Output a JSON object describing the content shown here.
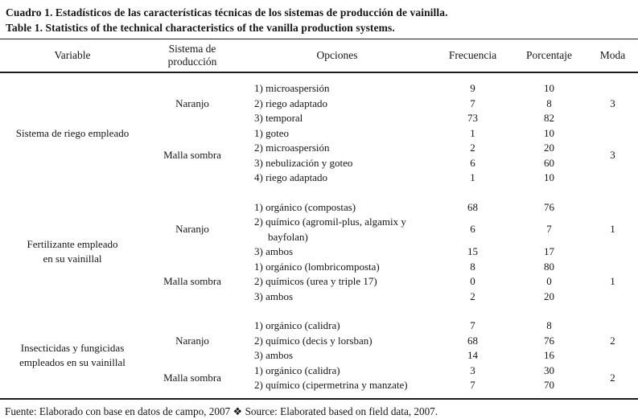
{
  "title": {
    "es": "Cuadro 1. Estadísticos de las características técnicas de los sistemas de producción de vainilla.",
    "en": "Table 1. Statistics of the technical characteristics of the vanilla production systems."
  },
  "table": {
    "columns": [
      "Variable",
      "Sistema de producción",
      "Opciones",
      "Frecuencia",
      "Porcentaje",
      "Moda"
    ],
    "sections": [
      {
        "variable": [
          "Sistema de riego empleado"
        ],
        "groups": [
          {
            "system": "Naranjo",
            "moda": "3",
            "options": [
              {
                "label": "1) microaspersión",
                "frecuencia": "9",
                "porcentaje": "10"
              },
              {
                "label": "2) riego adaptado",
                "frecuencia": "7",
                "porcentaje": "8"
              },
              {
                "label": "3) temporal",
                "frecuencia": "73",
                "porcentaje": "82"
              }
            ]
          },
          {
            "system": "Malla sombra",
            "moda": "3",
            "options": [
              {
                "label": "1) goteo",
                "frecuencia": "1",
                "porcentaje": "10"
              },
              {
                "label": "2) microaspersión",
                "frecuencia": "2",
                "porcentaje": "20"
              },
              {
                "label": "3) nebulización y goteo",
                "frecuencia": "6",
                "porcentaje": "60"
              },
              {
                "label": "4) riego adaptado",
                "frecuencia": "1",
                "porcentaje": "10"
              }
            ]
          }
        ]
      },
      {
        "variable": [
          "Fertilizante empleado",
          "en su vainillal"
        ],
        "groups": [
          {
            "system": "Naranjo",
            "moda": "1",
            "options": [
              {
                "label": "1) orgánico (compostas)",
                "frecuencia": "68",
                "porcentaje": "76"
              },
              {
                "label": "2) químico (agromil-plus, algamix y bayfolan)",
                "frecuencia": "6",
                "porcentaje": "7"
              },
              {
                "label": "3) ambos",
                "frecuencia": "15",
                "porcentaje": "17"
              }
            ]
          },
          {
            "system": "Malla sombra",
            "moda": "1",
            "options": [
              {
                "label": "1) orgánico (lombricomposta)",
                "frecuencia": "8",
                "porcentaje": "80"
              },
              {
                "label": "2) químicos (urea y triple 17)",
                "frecuencia": "0",
                "porcentaje": "0"
              },
              {
                "label": "3) ambos",
                "frecuencia": "2",
                "porcentaje": "20"
              }
            ]
          }
        ]
      },
      {
        "variable": [
          "Insecticidas y fungicidas",
          "empleados en su vainillal"
        ],
        "groups": [
          {
            "system": "Naranjo",
            "moda": "2",
            "options": [
              {
                "label": "1) orgánico (calidra)",
                "frecuencia": "7",
                "porcentaje": "8"
              },
              {
                "label": "2) químico (decis y lorsban)",
                "frecuencia": "68",
                "porcentaje": "76"
              },
              {
                "label": "3) ambos",
                "frecuencia": "14",
                "porcentaje": "16"
              }
            ]
          },
          {
            "system": "Malla sombra",
            "moda": "2",
            "options": [
              {
                "label": "1) orgánico (calidra)",
                "frecuencia": "3",
                "porcentaje": "30"
              },
              {
                "label": "2) químico (cipermetrina y manzate)",
                "frecuencia": "7",
                "porcentaje": "70"
              }
            ]
          }
        ]
      }
    ]
  },
  "footer": "Fuente: Elaborado con base en datos de campo, 2007 ❖ Source: Elaborated based on field data, 2007."
}
